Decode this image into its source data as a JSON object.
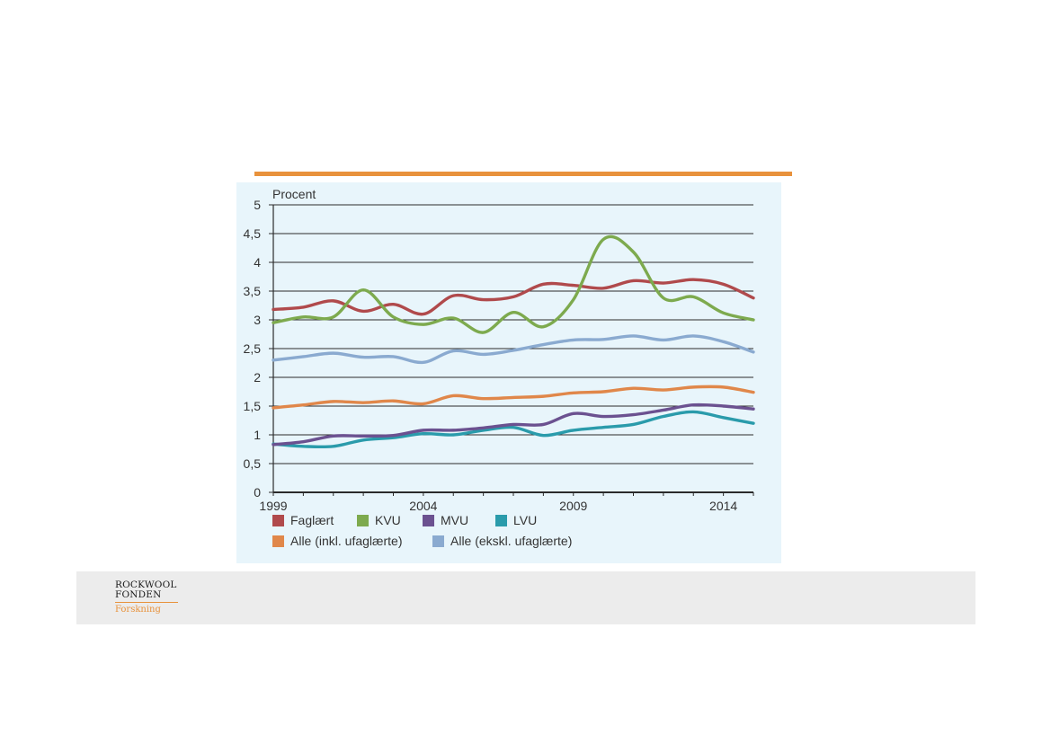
{
  "chart_data": {
    "type": "line",
    "ylabel": "Procent",
    "ylim": [
      0,
      5
    ],
    "yticks": [
      "0",
      "0,5",
      "1",
      "1,5",
      "2",
      "2,5",
      "3",
      "3,5",
      "4",
      "4,5",
      "5"
    ],
    "xlim": [
      1999,
      2015
    ],
    "xticks": [
      "1999",
      "2004",
      "2009",
      "2014"
    ],
    "grid": "horizontal",
    "legend_position": "bottom",
    "x": [
      1999,
      2000,
      2001,
      2002,
      2003,
      2004,
      2005,
      2006,
      2007,
      2008,
      2009,
      2010,
      2011,
      2012,
      2013,
      2014,
      2015
    ],
    "series": [
      {
        "name": "Faglært",
        "color": "#b04a4c",
        "values": [
          3.18,
          3.22,
          3.33,
          3.15,
          3.27,
          3.1,
          3.42,
          3.35,
          3.4,
          3.62,
          3.6,
          3.55,
          3.68,
          3.64,
          3.7,
          3.62,
          3.38
        ]
      },
      {
        "name": "KVU",
        "color": "#7daa4e",
        "values": [
          2.95,
          3.05,
          3.05,
          3.52,
          3.05,
          2.92,
          3.03,
          2.78,
          3.13,
          2.88,
          3.35,
          4.4,
          4.18,
          3.38,
          3.4,
          3.12,
          3.0
        ]
      },
      {
        "name": "MVU",
        "color": "#6b5190",
        "values": [
          0.83,
          0.88,
          0.98,
          0.98,
          0.99,
          1.08,
          1.08,
          1.12,
          1.18,
          1.18,
          1.37,
          1.32,
          1.35,
          1.43,
          1.52,
          1.5,
          1.45
        ]
      },
      {
        "name": "LVU",
        "color": "#2a9bab",
        "values": [
          0.84,
          0.8,
          0.8,
          0.91,
          0.95,
          1.02,
          1.0,
          1.08,
          1.13,
          0.99,
          1.08,
          1.13,
          1.18,
          1.32,
          1.4,
          1.3,
          1.2
        ]
      },
      {
        "name": "Alle (inkl. ufaglærte)",
        "color": "#e0874a",
        "values": [
          1.47,
          1.52,
          1.58,
          1.56,
          1.59,
          1.54,
          1.68,
          1.63,
          1.65,
          1.67,
          1.73,
          1.75,
          1.81,
          1.78,
          1.83,
          1.83,
          1.74
        ]
      },
      {
        "name": "Alle (ekskl. ufaglærte)",
        "color": "#8aaad0",
        "values": [
          2.3,
          2.36,
          2.42,
          2.35,
          2.36,
          2.26,
          2.46,
          2.4,
          2.47,
          2.57,
          2.65,
          2.66,
          2.72,
          2.65,
          2.72,
          2.62,
          2.44
        ]
      }
    ]
  },
  "footer": {
    "logo_line1": "ROCKWOOL",
    "logo_line2": "FONDEN",
    "logo_sub": "Forskning"
  }
}
